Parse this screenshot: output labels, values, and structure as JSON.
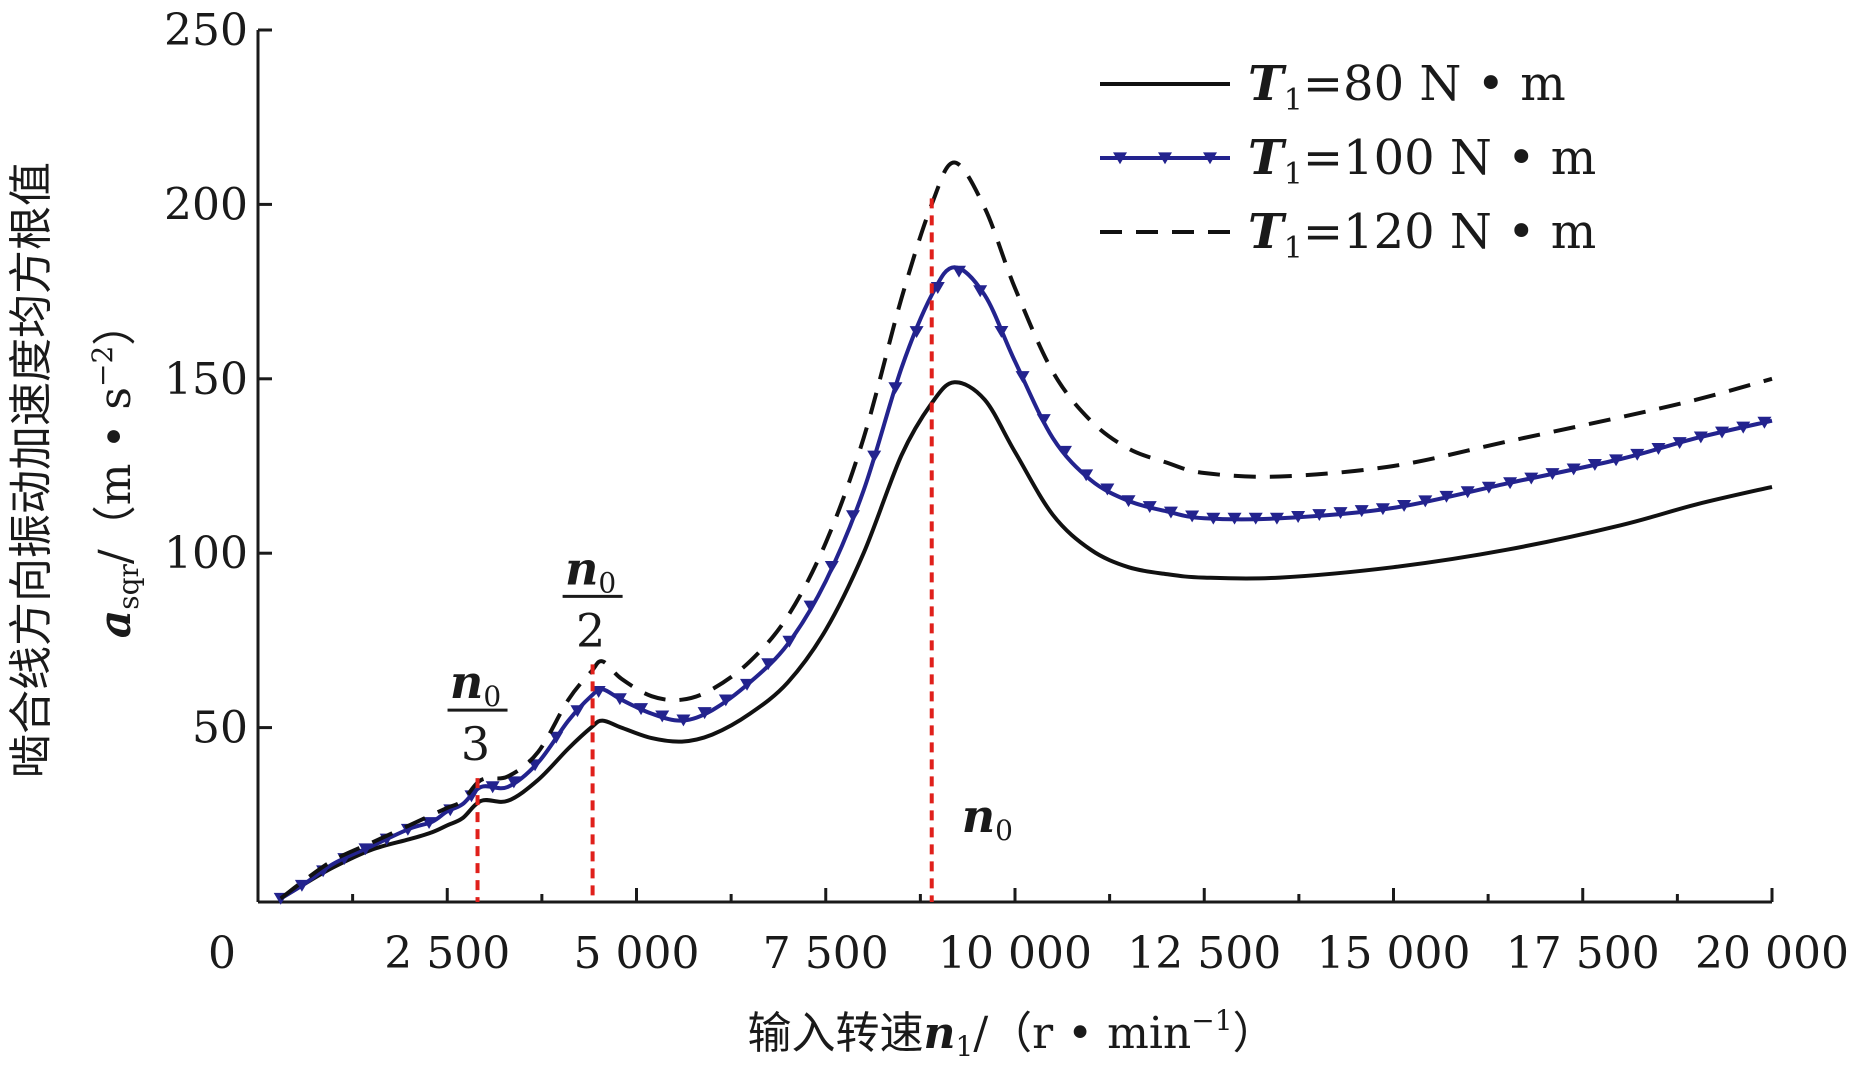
{
  "chart_data": {
    "type": "line",
    "xlabel": {
      "prefix": "输入转速",
      "var": "n",
      "sub": "1",
      "unit_prefix": "/（r • min",
      "unit_sup": "−1",
      "unit_suffix": "）"
    },
    "ylabel": {
      "title": "啮合线方向振动加速度均方根值",
      "var": "a",
      "sub": "sqr",
      "unit_prefix": "/（m • s",
      "unit_sup": "−2",
      "unit_suffix": "）"
    },
    "xlim": [
      0,
      20000
    ],
    "ylim": [
      0,
      250
    ],
    "x_ticks": [
      0,
      2500,
      5000,
      7500,
      10000,
      12500,
      15000,
      17500,
      20000
    ],
    "x_tick_labels": [
      "0",
      "2 500",
      "5 000",
      "7 500",
      "10 000",
      "12 500",
      "15 000",
      "17 500",
      "20 000"
    ],
    "y_ticks": [
      50,
      100,
      150,
      200,
      250
    ],
    "y_tick_labels": [
      "50",
      "100",
      "150",
      "200",
      "250"
    ],
    "grid": false,
    "legend_position": "top-right",
    "series": [
      {
        "name": "T₁=80 N • m",
        "legend": {
          "var": "T",
          "sub": "1",
          "rest": "=80 N • m"
        },
        "style": "solid",
        "color": "#111111",
        "x": [
          300,
          600,
          1000,
          1500,
          2000,
          2300,
          2500,
          2700,
          2950,
          3300,
          3700,
          4100,
          4400,
          4550,
          4800,
          5200,
          5600,
          6000,
          6500,
          7000,
          7500,
          8000,
          8500,
          8900,
          9200,
          9600,
          10000,
          10500,
          11000,
          11500,
          12000,
          12500,
          13500,
          15000,
          16500,
          18000,
          19000,
          20000
        ],
        "y": [
          1,
          5,
          10,
          15,
          18,
          20,
          22,
          24,
          29,
          29,
          35,
          44,
          50,
          52,
          50,
          47,
          46,
          48,
          54,
          63,
          78,
          100,
          128,
          143,
          149,
          144,
          129,
          111,
          101,
          96,
          94,
          93,
          93,
          96,
          101,
          108,
          114,
          119
        ]
      },
      {
        "name": "T₁=100 N • m",
        "legend": {
          "var": "T",
          "sub": "1",
          "rest": "=100 N • m"
        },
        "style": "solid-markers",
        "color": "#23238e",
        "x": [
          300,
          600,
          1000,
          1500,
          2000,
          2300,
          2500,
          2700,
          2950,
          3300,
          3700,
          4100,
          4400,
          4550,
          4800,
          5200,
          5600,
          6000,
          6500,
          7000,
          7500,
          8000,
          8500,
          8900,
          9200,
          9600,
          10000,
          10500,
          11000,
          11500,
          12000,
          12500,
          13500,
          15000,
          16500,
          18000,
          19000,
          20000
        ],
        "y": [
          1,
          5,
          11,
          16,
          21,
          23,
          26,
          28,
          33,
          33,
          40,
          52,
          59,
          61,
          58,
          54,
          52,
          55,
          63,
          74,
          92,
          118,
          153,
          174,
          182,
          174,
          155,
          133,
          121,
          115,
          112,
          110,
          110,
          113,
          120,
          127,
          133,
          138
        ]
      },
      {
        "name": "T₁=120 N • m",
        "legend": {
          "var": "T",
          "sub": "1",
          "rest": "=120 N • m"
        },
        "style": "dashed",
        "color": "#111111",
        "x": [
          300,
          600,
          1000,
          1500,
          2000,
          2300,
          2500,
          2700,
          2950,
          3300,
          3700,
          4100,
          4400,
          4550,
          4800,
          5200,
          5600,
          6000,
          6500,
          7000,
          7500,
          8000,
          8500,
          8900,
          9200,
          9600,
          10000,
          10500,
          11000,
          11500,
          12000,
          12500,
          13500,
          15000,
          16500,
          18000,
          19000,
          20000
        ],
        "y": [
          1,
          6,
          12,
          17,
          22,
          25,
          27,
          29,
          35,
          36,
          43,
          58,
          66,
          69,
          64,
          59,
          58,
          61,
          69,
          82,
          103,
          133,
          173,
          200,
          212,
          199,
          176,
          152,
          138,
          130,
          126,
          123,
          122,
          125,
          132,
          139,
          144,
          150
        ]
      }
    ],
    "markers": [
      {
        "x": 2900,
        "num": "n",
        "num_sub": "0",
        "den": "3"
      },
      {
        "x": 4420,
        "num": "n",
        "num_sub": "0",
        "den": "2"
      },
      {
        "x": 8900,
        "num": "n",
        "num_sub": "0",
        "den": ""
      }
    ],
    "marker_color": "#e0201b"
  }
}
